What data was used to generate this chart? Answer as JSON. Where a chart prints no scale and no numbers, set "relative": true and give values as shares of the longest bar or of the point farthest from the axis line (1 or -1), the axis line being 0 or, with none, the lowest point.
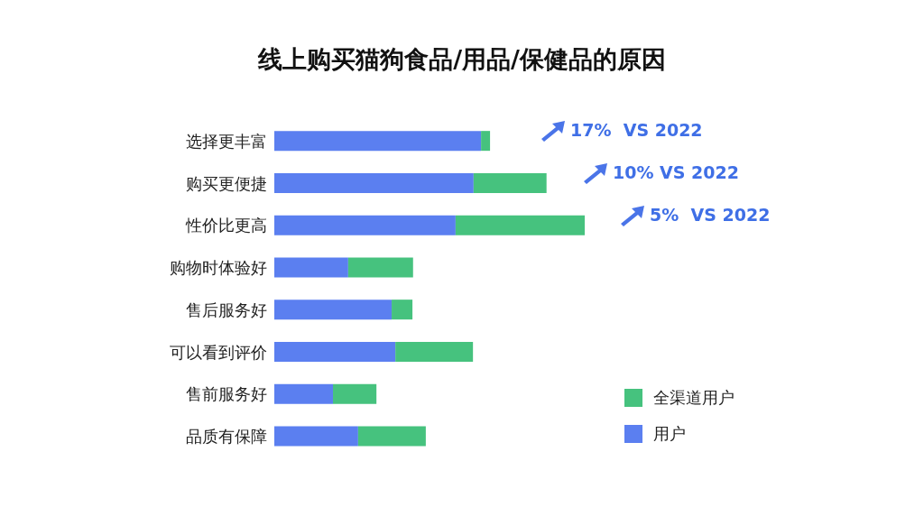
{
  "chart_data": {
    "type": "bar",
    "orientation": "horizontal",
    "stacked": true,
    "relative": true,
    "title": "线上购买猫狗食品/用品/保健品的原因",
    "categories": [
      "选择更丰富",
      "购买更便捷",
      "性价比更高",
      "购物时体验好",
      "售后服务好",
      "可以看到评价",
      "售前服务好",
      "品质有保障"
    ],
    "series": [
      {
        "name": "用户",
        "color": "#5b7ff0",
        "values": [
          0.666,
          0.642,
          0.584,
          0.238,
          0.378,
          0.39,
          0.189,
          0.27
        ]
      },
      {
        "name": "全渠道用户",
        "color": "#46c27e",
        "values": [
          0.029,
          0.235,
          0.416,
          0.209,
          0.067,
          0.25,
          0.14,
          0.218
        ]
      }
    ],
    "annotations": [
      "17%  VS 2022",
      "10% VS 2022",
      "5%  VS 2022"
    ],
    "legend": "bottom right"
  }
}
